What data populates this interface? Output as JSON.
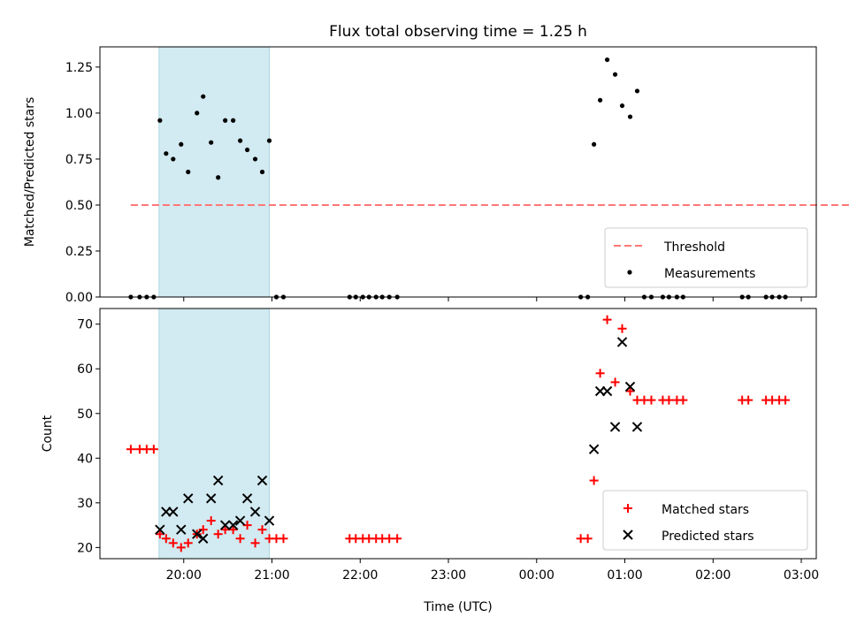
{
  "figure": {
    "title": "Flux total observing time = 1.25 h",
    "xlabel": "Time (UTC)",
    "x_ticks": [
      "20:00",
      "21:00",
      "22:00",
      "23:00",
      "00:00",
      "01:00",
      "02:00",
      "03:00"
    ],
    "x_tick_hours": [
      20,
      21,
      22,
      23,
      24,
      25,
      26,
      27
    ],
    "x_range_hours": [
      19.05,
      27.17
    ],
    "shaded_band_hours": [
      19.72,
      20.97
    ],
    "shaded_band_color": "#d2eaf1"
  },
  "chart_data": [
    {
      "type": "scatter",
      "ylabel": "Matched/Predicted stars",
      "ylim": [
        0,
        1.36
      ],
      "y_ticks": [
        "0.00",
        "0.25",
        "0.50",
        "0.75",
        "1.00",
        "1.25"
      ],
      "y_tick_values": [
        0,
        0.25,
        0.5,
        0.75,
        1.0,
        1.25
      ],
      "legend_position": "lower-right",
      "threshold": {
        "name": "Threshold",
        "value": 0.5,
        "x_from": 19.4,
        "x_to": 27.8,
        "color": "#ff7777"
      },
      "series": [
        {
          "name": "Measurements",
          "color": "#000000",
          "x": [
            19.4,
            19.5,
            19.58,
            19.66,
            19.73,
            19.8,
            19.88,
            19.97,
            20.05,
            20.15,
            20.22,
            20.31,
            20.39,
            20.47,
            20.56,
            20.64,
            20.72,
            20.81,
            20.89,
            20.97,
            21.05,
            21.13,
            21.88,
            21.95,
            22.03,
            22.1,
            22.18,
            22.25,
            22.33,
            22.42,
            24.5,
            24.58,
            24.65,
            24.72,
            24.8,
            24.89,
            24.97,
            25.06,
            25.14,
            25.22,
            25.3,
            25.43,
            25.5,
            25.59,
            25.66,
            26.33,
            26.4,
            26.6,
            26.67,
            26.75,
            26.82
          ],
          "y": [
            0,
            0,
            0,
            0,
            0.96,
            0.78,
            0.75,
            0.83,
            0.68,
            1.0,
            1.09,
            0.84,
            0.65,
            0.96,
            0.96,
            0.85,
            0.8,
            0.75,
            0.68,
            0.85,
            0,
            0,
            0,
            0,
            0,
            0,
            0,
            0,
            0,
            0,
            0,
            0,
            0.83,
            1.07,
            1.29,
            1.21,
            1.04,
            0.98,
            1.12,
            0,
            0,
            0,
            0,
            0,
            0,
            0,
            0,
            0,
            0,
            0,
            0
          ]
        }
      ]
    },
    {
      "type": "scatter",
      "ylabel": "Count",
      "ylim": [
        17.5,
        73.5
      ],
      "y_ticks": [
        "20",
        "30",
        "40",
        "50",
        "60",
        "70"
      ],
      "y_tick_values": [
        20,
        30,
        40,
        50,
        60,
        70
      ],
      "legend_position": "lower-right",
      "series": [
        {
          "name": "Matched stars",
          "marker": "plus",
          "color": "#ff0000",
          "x": [
            19.4,
            19.5,
            19.58,
            19.66,
            19.73,
            19.8,
            19.88,
            19.97,
            20.05,
            20.15,
            20.22,
            20.31,
            20.39,
            20.47,
            20.56,
            20.64,
            20.72,
            20.81,
            20.89,
            20.97,
            21.05,
            21.13,
            21.88,
            21.95,
            22.03,
            22.1,
            22.18,
            22.25,
            22.33,
            22.42,
            24.5,
            24.58,
            24.65,
            24.72,
            24.8,
            24.89,
            24.97,
            25.06,
            25.14,
            25.22,
            25.3,
            25.43,
            25.5,
            25.59,
            25.66,
            26.33,
            26.4,
            26.6,
            26.67,
            26.75,
            26.82
          ],
          "y": [
            42,
            42,
            42,
            42,
            23,
            22,
            21,
            20,
            21,
            23,
            24,
            26,
            23,
            24,
            24,
            22,
            25,
            21,
            24,
            22,
            22,
            22,
            22,
            22,
            22,
            22,
            22,
            22,
            22,
            22,
            22,
            22,
            35,
            59,
            71,
            57,
            69,
            55,
            53,
            53,
            53,
            53,
            53,
            53,
            53,
            53,
            53,
            53,
            53,
            53,
            53
          ]
        },
        {
          "name": "Predicted stars",
          "marker": "x",
          "color": "#000000",
          "x": [
            19.73,
            19.8,
            19.88,
            19.97,
            20.05,
            20.15,
            20.22,
            20.31,
            20.39,
            20.47,
            20.56,
            20.64,
            20.72,
            20.81,
            20.89,
            20.97,
            24.65,
            24.72,
            24.8,
            24.89,
            24.97,
            25.06,
            25.14
          ],
          "y": [
            24,
            28,
            28,
            24,
            31,
            23,
            22,
            31,
            35,
            25,
            25,
            26,
            31,
            28,
            35,
            26,
            42,
            55,
            55,
            47,
            66,
            56,
            47
          ]
        }
      ]
    }
  ]
}
